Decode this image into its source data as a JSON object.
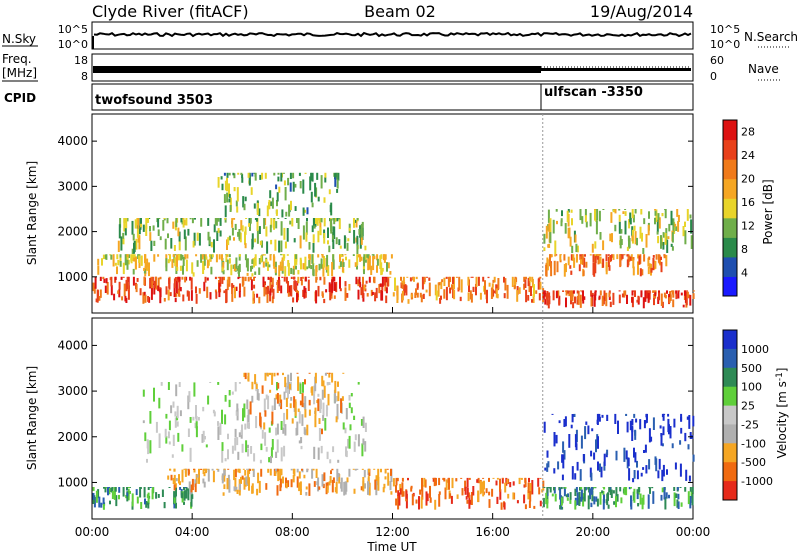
{
  "header": {
    "title": "Clyde River (fitACF)",
    "beam": "Beam 02",
    "date": "19/Aug/2014"
  },
  "sky_panel": {
    "left_label": "N.Sky",
    "right_label": "N.Search",
    "left_ticks": [
      "10^5",
      "10^0"
    ],
    "right_ticks": [
      "10^5",
      "10^0"
    ]
  },
  "freq_panel": {
    "left_label_1": "Freq.",
    "left_label_2": "[MHz]",
    "right_label": "Nave",
    "left_ticks": [
      "18",
      "8"
    ],
    "right_ticks": [
      "60",
      "0"
    ]
  },
  "cpid_panel": {
    "label": "CPID",
    "programs": [
      {
        "name": "twofsound 3503",
        "start_hour": 0
      },
      {
        "name": "ulfscan -3350",
        "start_hour": 18
      }
    ]
  },
  "colors": {
    "power": [
      "#1a1aff",
      "#1f4fb0",
      "#2a8a4a",
      "#6fae4a",
      "#e8d42a",
      "#f5a623",
      "#f07a1a",
      "#e8401a",
      "#dd1111"
    ],
    "velocity": [
      "#1a2fcc",
      "#2a5fb0",
      "#2e8a55",
      "#5fcf3a",
      "#c8c8c8",
      "#b0b0b0",
      "#f5a623",
      "#f06a10",
      "#e62a1a"
    ]
  },
  "chart_data": [
    {
      "type": "heatmap",
      "title": "Power",
      "xlabel": "",
      "ylabel": "Slant Range [km]",
      "xlim": [
        0,
        24
      ],
      "ylim": [
        200,
        4600
      ],
      "y_ticks": [
        "1000",
        "2000",
        "3000",
        "4000"
      ],
      "y_tick_values": [
        1000,
        2000,
        3000,
        4000
      ],
      "colorbar": {
        "label": "Power [dB]",
        "ticks": [
          "4",
          "8",
          "12",
          "16",
          "20",
          "24",
          "28"
        ],
        "range": [
          0,
          30
        ]
      },
      "regions": [
        {
          "t": [
            0,
            12
          ],
          "r": [
            400,
            1000
          ],
          "level": 26
        },
        {
          "t": [
            0,
            12
          ],
          "r": [
            1000,
            1500
          ],
          "level": 15
        },
        {
          "t": [
            1,
            11
          ],
          "r": [
            1500,
            2300
          ],
          "level": 12
        },
        {
          "t": [
            5,
            10
          ],
          "r": [
            2300,
            3300
          ],
          "level": 10
        },
        {
          "t": [
            12,
            18
          ],
          "r": [
            400,
            1000
          ],
          "level": 22
        },
        {
          "t": [
            18,
            24
          ],
          "r": [
            300,
            700
          ],
          "level": 27
        },
        {
          "t": [
            18,
            23
          ],
          "r": [
            1000,
            1500
          ],
          "level": 22
        },
        {
          "t": [
            18,
            24
          ],
          "r": [
            1500,
            2500
          ],
          "level": 14
        }
      ]
    },
    {
      "type": "heatmap",
      "title": "Velocity",
      "xlabel": "Time UT",
      "ylabel": "Slant Range [km]",
      "xlim": [
        0,
        24
      ],
      "ylim": [
        200,
        4600
      ],
      "x_ticks": [
        "00:00",
        "04:00",
        "08:00",
        "12:00",
        "16:00",
        "20:00",
        "00:00"
      ],
      "x_tick_values": [
        0,
        4,
        8,
        12,
        16,
        20,
        24
      ],
      "y_ticks": [
        "1000",
        "2000",
        "3000",
        "4000"
      ],
      "y_tick_values": [
        1000,
        2000,
        3000,
        4000
      ],
      "colorbar": {
        "label": "Velocity [m s^-1]",
        "ticks": [
          "1000",
          "500",
          "100",
          "25",
          "-25",
          "-100",
          "-500",
          "-1000"
        ]
      },
      "regions": [
        {
          "t": [
            0,
            4
          ],
          "r": [
            400,
            900
          ],
          "level": "100"
        },
        {
          "t": [
            3,
            12
          ],
          "r": [
            700,
            1300
          ],
          "level": "-100"
        },
        {
          "t": [
            2,
            11
          ],
          "r": [
            1400,
            3200
          ],
          "level": "25"
        },
        {
          "t": [
            6,
            10
          ],
          "r": [
            2000,
            3400
          ],
          "level": "-100"
        },
        {
          "t": [
            12,
            18
          ],
          "r": [
            400,
            1100
          ],
          "level": "-500"
        },
        {
          "t": [
            18,
            24
          ],
          "r": [
            400,
            900
          ],
          "level": "100"
        },
        {
          "t": [
            18,
            24
          ],
          "r": [
            1000,
            2500
          ],
          "level": "1000"
        }
      ]
    }
  ]
}
